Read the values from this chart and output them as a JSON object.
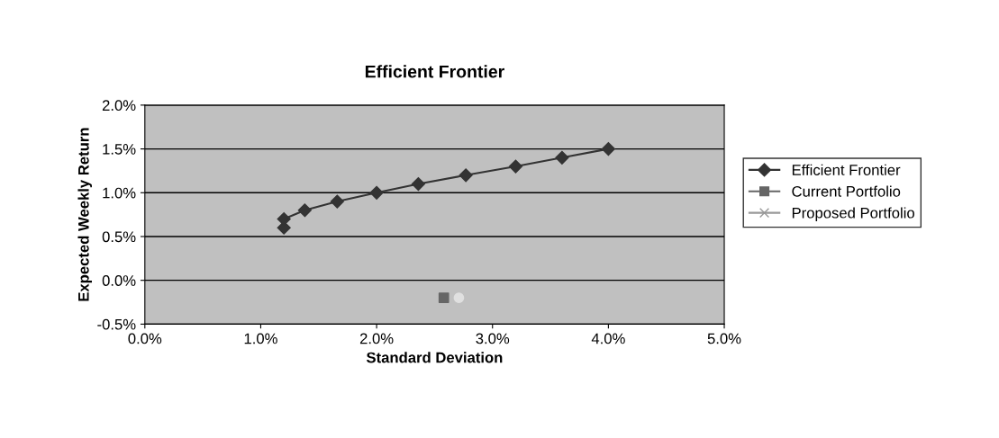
{
  "chart_data": {
    "type": "line",
    "title": "Efficient Frontier",
    "xlabel": "Standard Deviation",
    "ylabel": "Expected Weekly Return",
    "series": [
      {
        "name": "Efficient Frontier",
        "color": "#333333",
        "marker": "diamond",
        "x": [
          1.2,
          1.2,
          1.38,
          1.66,
          2.0,
          2.36,
          2.77,
          3.2,
          3.6,
          4.0
        ],
        "values": [
          0.6,
          0.7,
          0.8,
          0.9,
          1.0,
          1.1,
          1.2,
          1.3,
          1.4,
          1.5
        ]
      },
      {
        "name": "Current Portfolio",
        "type": "scatter",
        "color": "#666666",
        "marker": "square",
        "x": [
          2.58
        ],
        "values": [
          -0.2
        ]
      },
      {
        "type": "scatter",
        "color": "#e0e0e0",
        "marker": "circle",
        "x": [
          2.71
        ],
        "values": [
          -0.2
        ]
      },
      {
        "name": "Proposed Portfolio",
        "type": "scatter",
        "color": "#999999",
        "marker": "cross"
      }
    ],
    "xlim": [
      0,
      5
    ],
    "xticks": [
      {
        "value": 0,
        "label": "0.0%"
      },
      {
        "value": 1,
        "label": "1.0%"
      },
      {
        "value": 2,
        "label": "2.0%"
      },
      {
        "value": 3,
        "label": "3.0%"
      },
      {
        "value": 4,
        "label": "4.0%"
      },
      {
        "value": 5,
        "label": "5.0%"
      }
    ],
    "ylim": [
      -0.5,
      2
    ],
    "yticks": [
      {
        "value": -0.5,
        "label": "-0.5%"
      },
      {
        "value": 0,
        "label": "0.0%"
      },
      {
        "value": 0.5,
        "label": "0.5%"
      },
      {
        "value": 1,
        "label": "1.0%"
      },
      {
        "value": 1.5,
        "label": "1.5%"
      },
      {
        "value": 2,
        "label": "2.0%"
      }
    ],
    "grid": "y",
    "legend": "right"
  }
}
